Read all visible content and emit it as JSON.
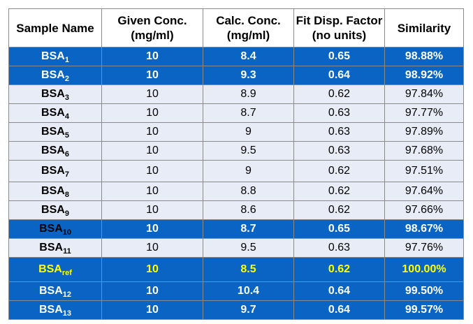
{
  "table": {
    "headers": [
      {
        "line1": "Sample Name",
        "line2": ""
      },
      {
        "line1": "Given Conc.",
        "line2": "(mg/ml)"
      },
      {
        "line1": "Calc. Conc.",
        "line2": "(mg/ml)"
      },
      {
        "line1": "Fit Disp. Factor",
        "line2": "(no units)"
      },
      {
        "line1": "Similarity",
        "line2": ""
      }
    ],
    "rows": [
      {
        "name": "BSA",
        "sub": "1",
        "given": "10",
        "calc": "8.4",
        "fdf": "0.65",
        "similarity": "98.88%",
        "style": "blue"
      },
      {
        "name": "BSA",
        "sub": "2",
        "given": "10",
        "calc": "9.3",
        "fdf": "0.64",
        "similarity": "98.92%",
        "style": "blue"
      },
      {
        "name": "BSA",
        "sub": "3",
        "given": "10",
        "calc": "8.9",
        "fdf": "0.62",
        "similarity": "97.84%",
        "style": "light"
      },
      {
        "name": "BSA",
        "sub": "4",
        "given": "10",
        "calc": "8.7",
        "fdf": "0.63",
        "similarity": "97.77%",
        "style": "light"
      },
      {
        "name": "BSA",
        "sub": "5",
        "given": "10",
        "calc": "9",
        "fdf": "0.63",
        "similarity": "97.89%",
        "style": "light"
      },
      {
        "name": "BSA",
        "sub": "6",
        "given": "10",
        "calc": "9.5",
        "fdf": "0.63",
        "similarity": "97.68%",
        "style": "light"
      },
      {
        "name": "BSA",
        "sub": "7",
        "given": "10",
        "calc": "9",
        "fdf": "0.62",
        "similarity": "97.51%",
        "style": "light"
      },
      {
        "name": "BSA",
        "sub": "8",
        "given": "10",
        "calc": "8.8",
        "fdf": "0.62",
        "similarity": "97.64%",
        "style": "light"
      },
      {
        "name": "BSA",
        "sub": "9",
        "given": "10",
        "calc": "8.6",
        "fdf": "0.62",
        "similarity": "97.66%",
        "style": "light"
      },
      {
        "name": "BSA",
        "sub": "10",
        "given": "10",
        "calc": "8.7",
        "fdf": "0.65",
        "similarity": "98.67%",
        "style": "blue"
      },
      {
        "name": "BSA",
        "sub": "11",
        "given": "10",
        "calc": "9.5",
        "fdf": "0.63",
        "similarity": "97.76%",
        "style": "light"
      },
      {
        "name": "BSA",
        "sub": "ref",
        "given": "10",
        "calc": "8.5",
        "fdf": "0.62",
        "similarity": "100.00%",
        "style": "ref"
      },
      {
        "name": "BSA",
        "sub": "12",
        "given": "10",
        "calc": "10.4",
        "fdf": "0.64",
        "similarity": "99.50%",
        "style": "blue"
      },
      {
        "name": "BSA",
        "sub": "13",
        "given": "10",
        "calc": "9.7",
        "fdf": "0.64",
        "similarity": "99.57%",
        "style": "blue"
      }
    ],
    "colors": {
      "highlight_blue": "#0a64c4",
      "light_row": "#e8ecf7",
      "reference_text": "#ffff00"
    }
  }
}
